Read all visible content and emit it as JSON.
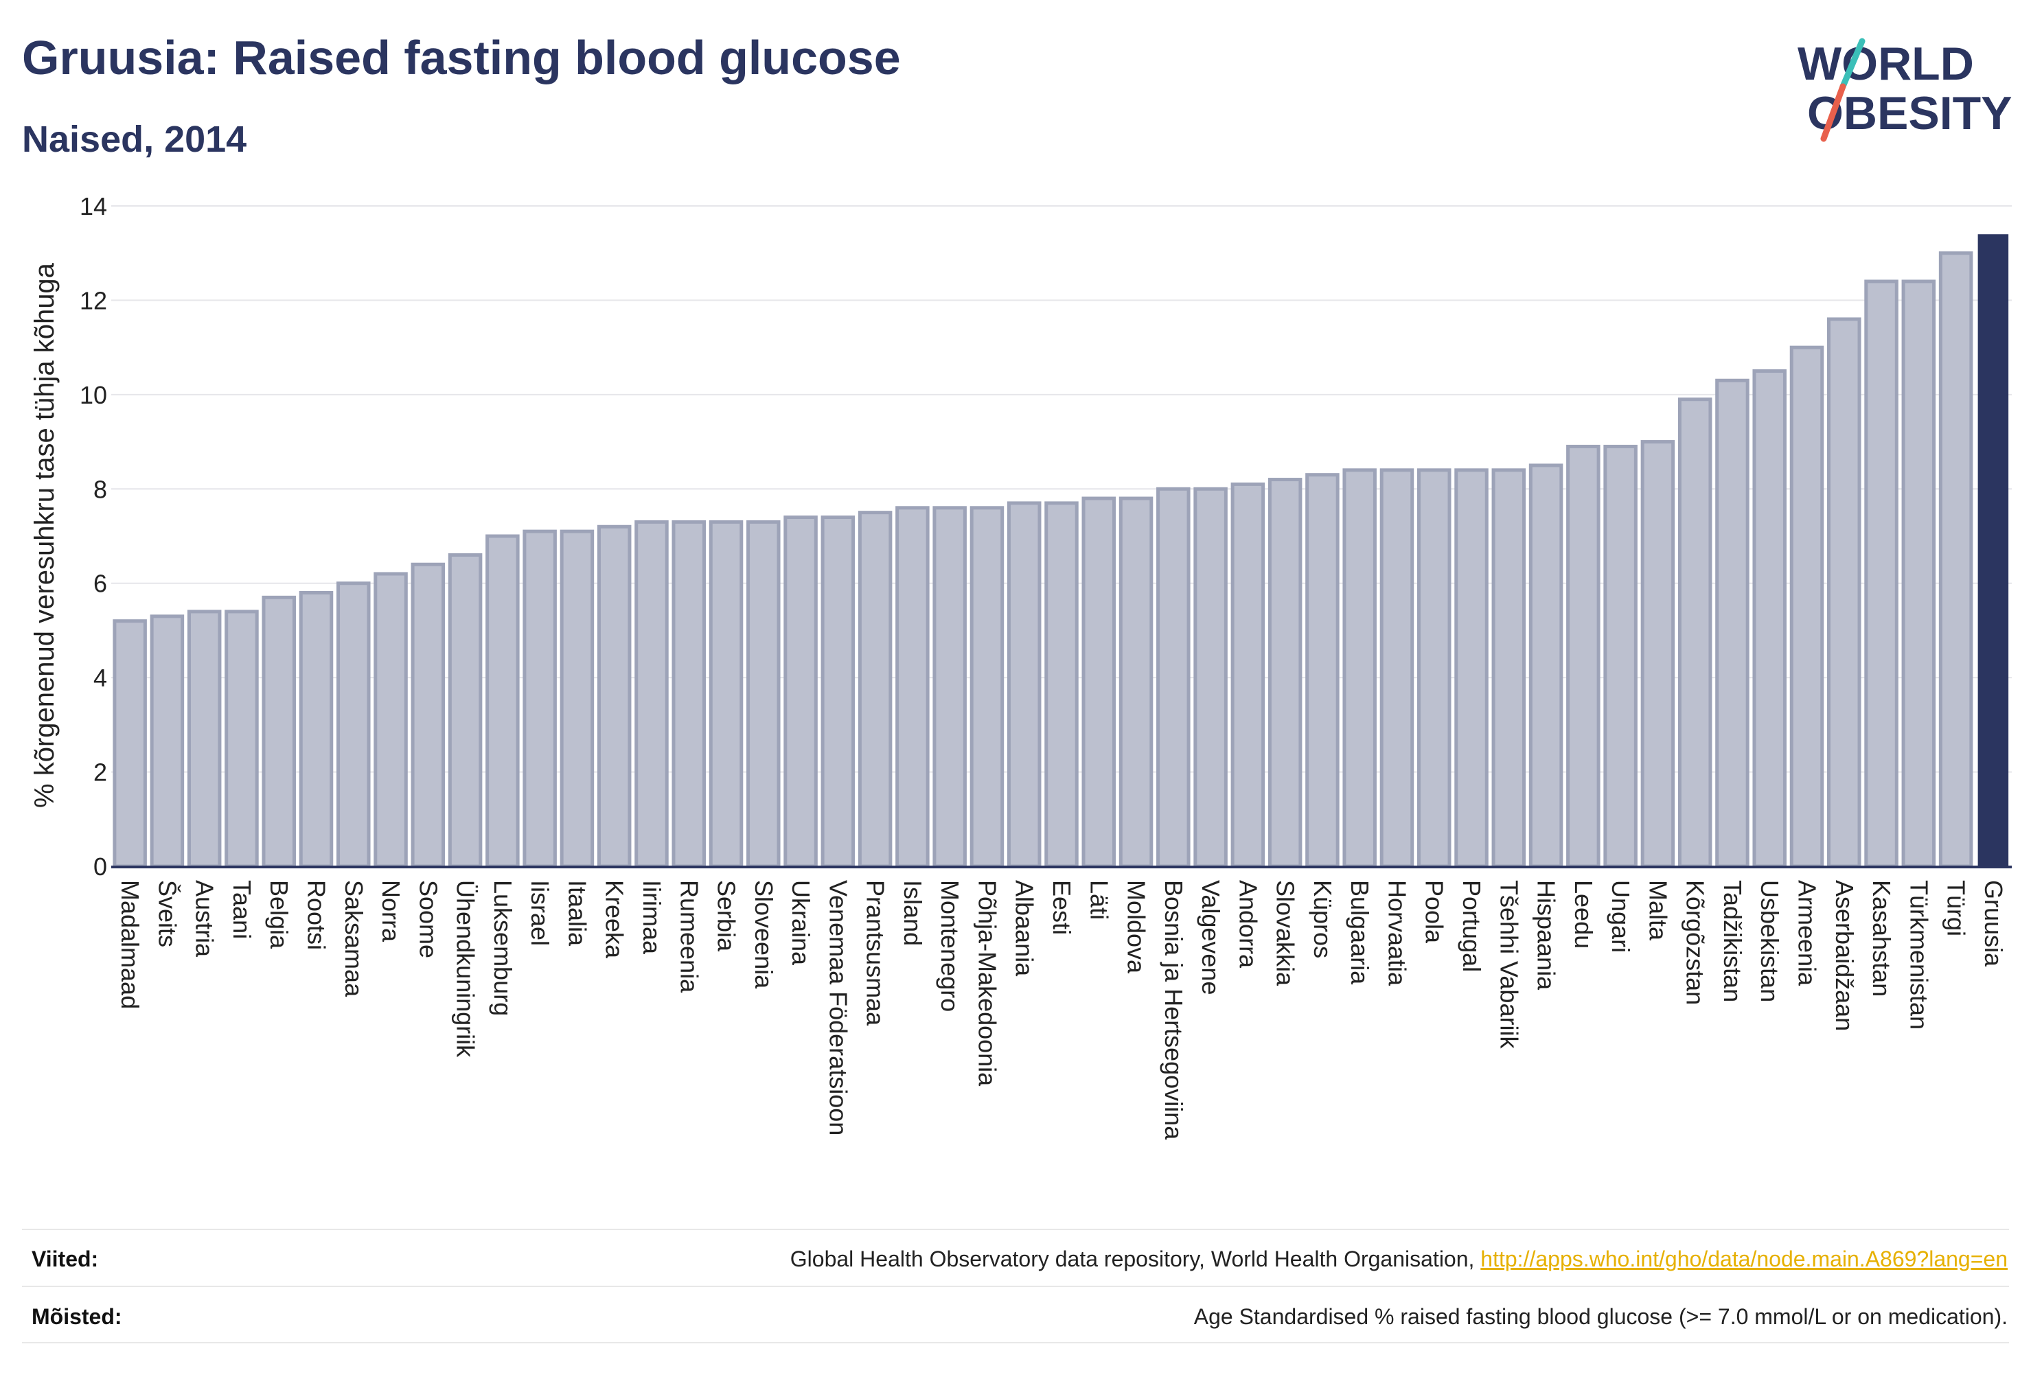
{
  "header": {
    "title": "Gruusia: Raised fasting blood glucose",
    "subtitle": "Naised, 2014"
  },
  "logo": {
    "line1": "WORLD",
    "line2": "OBESITY",
    "colors": {
      "text": "#2b3560",
      "slash_teal": "#3bbfb8",
      "slash_coral": "#e8604c"
    }
  },
  "chart_data": {
    "type": "bar",
    "title": "Gruusia: Raised fasting blood glucose",
    "subtitle": "Naised, 2014",
    "xlabel": "",
    "ylabel": "% kõrgenenud veresuhkru tase tühja kõhuga",
    "ylim": [
      0,
      14
    ],
    "yticks": [
      0,
      2,
      4,
      6,
      8,
      10,
      12,
      14
    ],
    "grid": true,
    "categories": [
      "Madalmaad",
      "Šveits",
      "Austria",
      "Taani",
      "Belgia",
      "Rootsi",
      "Saksamaa",
      "Norra",
      "Soome",
      "Ühendkuningriik",
      "Luksemburg",
      "Iisrael",
      "Itaalia",
      "Kreeka",
      "Iirimaa",
      "Rumeenia",
      "Serbia",
      "Sloveenia",
      "Ukraina",
      "Venemaa Föderatsioon",
      "Prantsusmaa",
      "Island",
      "Montenegro",
      "Põhja-Makedoonia",
      "Albaania",
      "Eesti",
      "Läti",
      "Moldova",
      "Bosnia ja Hertsegoviina",
      "Valgevene",
      "Andorra",
      "Slovakkia",
      "Küpros",
      "Bulgaaria",
      "Horvaatia",
      "Poola",
      "Portugal",
      "Tšehhi Vabariik",
      "Hispaania",
      "Leedu",
      "Ungari",
      "Malta",
      "Kõrgõzstan",
      "Tadžikistan",
      "Usbekistan",
      "Armeenia",
      "Aserbaidžaan",
      "Kasahstan",
      "Türkmenistan",
      "Türgi",
      "Gruusia"
    ],
    "values": [
      5.2,
      5.3,
      5.4,
      5.4,
      5.7,
      5.8,
      6.0,
      6.2,
      6.4,
      6.6,
      7.0,
      7.1,
      7.1,
      7.2,
      7.3,
      7.3,
      7.3,
      7.3,
      7.4,
      7.4,
      7.5,
      7.6,
      7.6,
      7.6,
      7.7,
      7.7,
      7.8,
      7.8,
      8.0,
      8.0,
      8.1,
      8.2,
      8.3,
      8.4,
      8.4,
      8.4,
      8.4,
      8.4,
      8.5,
      8.9,
      8.9,
      9.0,
      9.9,
      10.3,
      10.5,
      11.0,
      11.6,
      12.4,
      12.4,
      13.0,
      13.4
    ],
    "highlight": "Gruusia",
    "colors": {
      "bar": "#bcc0cf",
      "bar_border": "#9da3b8",
      "highlight": "#2b3560"
    }
  },
  "footer": {
    "sources_label": "Viited:",
    "sources_text": "Global Health Observatory data repository, World Health Organisation, ",
    "sources_link": "http://apps.who.int/gho/data/node.main.A869?lang=en",
    "definitions_label": "Mõisted:",
    "definitions_text": "Age Standardised % raised fasting blood glucose (>= 7.0 mmol/L or on medication)."
  }
}
